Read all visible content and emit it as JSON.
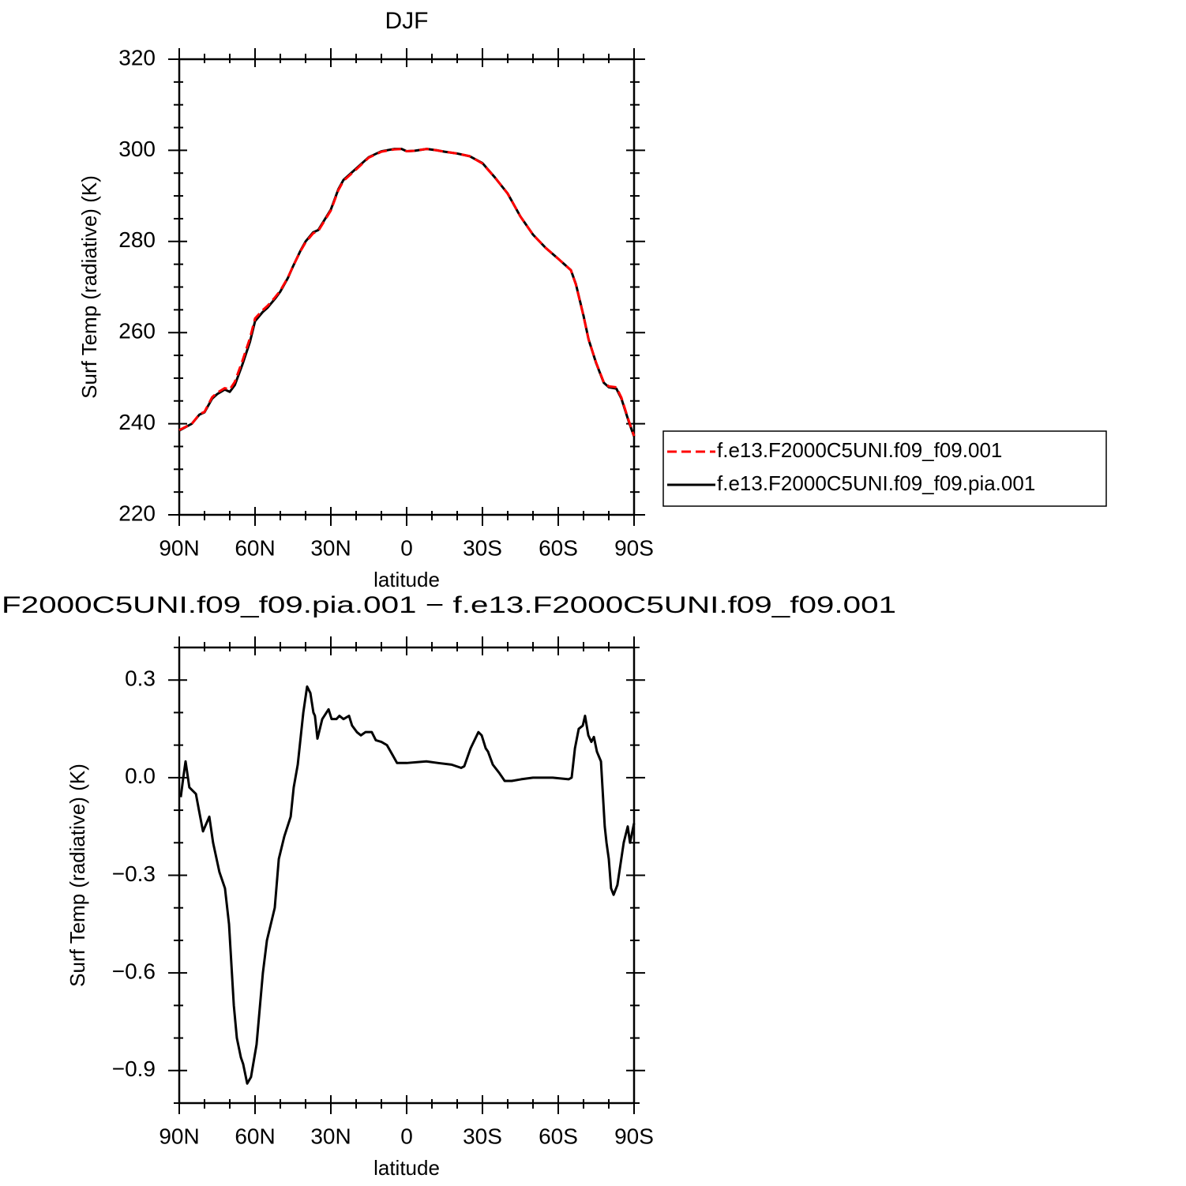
{
  "chart_data": [
    {
      "type": "line",
      "title": "DJF",
      "xlabel": "latitude",
      "ylabel": "Surf Temp (radiative) (K)",
      "x": [
        90,
        85,
        82,
        80,
        77,
        75,
        72,
        70,
        68,
        65,
        62,
        60,
        57,
        55,
        52,
        50,
        47,
        45,
        42,
        40,
        37,
        35,
        30,
        27,
        25,
        20,
        15,
        10,
        5,
        2,
        0,
        -3,
        -8,
        -12,
        -15,
        -20,
        -25,
        -30,
        -35,
        -40,
        -45,
        -50,
        -55,
        -60,
        -65,
        -67,
        -70,
        -72,
        -75,
        -78,
        -80,
        -83,
        -85,
        -88,
        -90
      ],
      "series": [
        {
          "name": "f.e13.F2000C5UNI.f09_f09.001",
          "color": "#ff0000",
          "linestyle": "dashed",
          "values": [
            238.6,
            240,
            242.1,
            242.6,
            245.8,
            246.8,
            247.8,
            247.5,
            249.2,
            253.8,
            258.8,
            263.1,
            264.9,
            265.9,
            267.8,
            269.2,
            272.1,
            274.5,
            277.9,
            279.8,
            281.8,
            282.3,
            286.8,
            291.3,
            293.3,
            295.8,
            298.4,
            299.7,
            300.2,
            300.3,
            299.8,
            299.9,
            300.3,
            300,
            299.7,
            299.3,
            298.7,
            297.1,
            294,
            290.5,
            285.5,
            281.5,
            278.6,
            276.2,
            273.7,
            270.5,
            263.6,
            258.5,
            253.4,
            249.1,
            248.2,
            248,
            245.7,
            240.5,
            237.3
          ]
        },
        {
          "name": "f.e13.F2000C5UNI.f09_f09.pia.001",
          "color": "#000000",
          "linestyle": "solid",
          "values": [
            238.5,
            240,
            242,
            242.5,
            245.5,
            246.5,
            247.5,
            247,
            248.5,
            253,
            258,
            262.5,
            264.5,
            265.5,
            267.5,
            269,
            272,
            274.5,
            278,
            280,
            282,
            282.5,
            287,
            291.5,
            293.5,
            296,
            298.5,
            299.8,
            300.3,
            300.3,
            299.8,
            299.9,
            300.3,
            300,
            299.7,
            299.3,
            298.7,
            297.2,
            294,
            290.5,
            285.5,
            281.5,
            278.6,
            276.2,
            273.7,
            270.6,
            263.7,
            258.5,
            253.3,
            249,
            248,
            247.7,
            245.5,
            240.3,
            237.2
          ]
        }
      ],
      "xlim": [
        90,
        -90
      ],
      "xticks": [
        {
          "value": 90,
          "label": "90N"
        },
        {
          "value": 60,
          "label": "60N"
        },
        {
          "value": 30,
          "label": "30N"
        },
        0,
        {
          "value": -30,
          "label": "30S"
        },
        {
          "value": -60,
          "label": "60S"
        },
        {
          "value": -90,
          "label": "90S"
        }
      ],
      "xminorticks": [
        80,
        70,
        50,
        40,
        20,
        10,
        -10,
        -20,
        -40,
        -50,
        -70,
        -80
      ],
      "ylim": [
        220,
        320
      ],
      "yticks": [
        220,
        240,
        260,
        280,
        300,
        320
      ],
      "yminorticks": [
        225,
        230,
        235,
        245,
        250,
        255,
        265,
        270,
        275,
        285,
        290,
        295,
        305,
        310,
        315
      ],
      "legend": "outside-right"
    },
    {
      "type": "line",
      "title": "F2000C5UNI.f09_f09.pia.001 − f.e13.F2000C5UNI.f09_f09.001",
      "xlabel": "latitude",
      "ylabel": "Surf Temp (radiative) (K)",
      "x": [
        89.4,
        88.4,
        87.5,
        86,
        83.4,
        82.2,
        80.6,
        78.1,
        76.6,
        74.1,
        71.9,
        70.3,
        68.4,
        67.2,
        65.6,
        64.7,
        63.1,
        61.6,
        59.4,
        56.9,
        55.3,
        52.2,
        50.6,
        48.4,
        45.9,
        44.7,
        43.1,
        40.9,
        39.4,
        38.1,
        36.9,
        36.3,
        35.3,
        33.4,
        30.9,
        29.7,
        27.8,
        26.6,
        25,
        22.8,
        21.6,
        19.7,
        18.1,
        16.3,
        13.8,
        12.2,
        10,
        7.8,
        5.6,
        3.8,
        0,
        -7.8,
        -12.5,
        -17.8,
        -21.6,
        -22.8,
        -25.3,
        -28.4,
        -29.7,
        -31.3,
        -32.2,
        -34.1,
        -36.6,
        -38.8,
        -41.6,
        -45.3,
        -50,
        -57.8,
        -64.1,
        -65.3,
        -66.6,
        -68.1,
        -69.7,
        -70.6,
        -71.9,
        -73.1,
        -74.1,
        -75.3,
        -76.9,
        -78.4,
        -79.1,
        -80,
        -80.9,
        -81.9,
        -83.4,
        -85.9,
        -87.5,
        -88.4,
        -90
      ],
      "series": [
        {
          "color": "#000000",
          "linestyle": "solid",
          "values": [
            -0.06,
            0,
            0.05,
            -0.03,
            -0.05,
            -0.1,
            -0.165,
            -0.12,
            -0.2,
            -0.29,
            -0.34,
            -0.45,
            -0.7,
            -0.8,
            -0.86,
            -0.88,
            -0.94,
            -0.92,
            -0.82,
            -0.6,
            -0.5,
            -0.4,
            -0.25,
            -0.18,
            -0.12,
            -0.03,
            0.04,
            0.2,
            0.28,
            0.26,
            0.2,
            0.19,
            0.12,
            0.18,
            0.21,
            0.18,
            0.18,
            0.19,
            0.18,
            0.19,
            0.16,
            0.14,
            0.13,
            0.14,
            0.14,
            0.115,
            0.11,
            0.1,
            0.07,
            0.045,
            0.045,
            0.05,
            0.045,
            0.04,
            0.03,
            0.035,
            0.09,
            0.14,
            0.13,
            0.09,
            0.08,
            0.04,
            0.015,
            -0.01,
            -0.01,
            -0.005,
            0,
            0,
            -0.005,
            0,
            0.09,
            0.15,
            0.16,
            0.19,
            0.13,
            0.11,
            0.125,
            0.08,
            0.05,
            -0.15,
            -0.2,
            -0.25,
            -0.34,
            -0.36,
            -0.33,
            -0.2,
            -0.15,
            -0.2,
            -0.14
          ]
        }
      ],
      "xlim": [
        90,
        -90
      ],
      "xticks": [
        {
          "value": 90,
          "label": "90N"
        },
        {
          "value": 60,
          "label": "60N"
        },
        {
          "value": 30,
          "label": "30N"
        },
        0,
        {
          "value": -30,
          "label": "30S"
        },
        {
          "value": -60,
          "label": "60S"
        },
        {
          "value": -90,
          "label": "90S"
        }
      ],
      "xminorticks": [
        80,
        70,
        50,
        40,
        20,
        10,
        -10,
        -20,
        -40,
        -50,
        -70,
        -80
      ],
      "ylim": [
        -1.0,
        0.4
      ],
      "yticks": [
        {
          "value": -0.9,
          "label": "−0.9"
        },
        {
          "value": -0.6,
          "label": "−0.6"
        },
        {
          "value": -0.3,
          "label": "−0.3"
        },
        {
          "value": 0,
          "label": "0.0"
        },
        0.3
      ],
      "yminorticks": [
        -1.0,
        -0.8,
        -0.7,
        -0.5,
        -0.4,
        -0.2,
        -0.1,
        0.1,
        0.2,
        0.4
      ]
    }
  ]
}
